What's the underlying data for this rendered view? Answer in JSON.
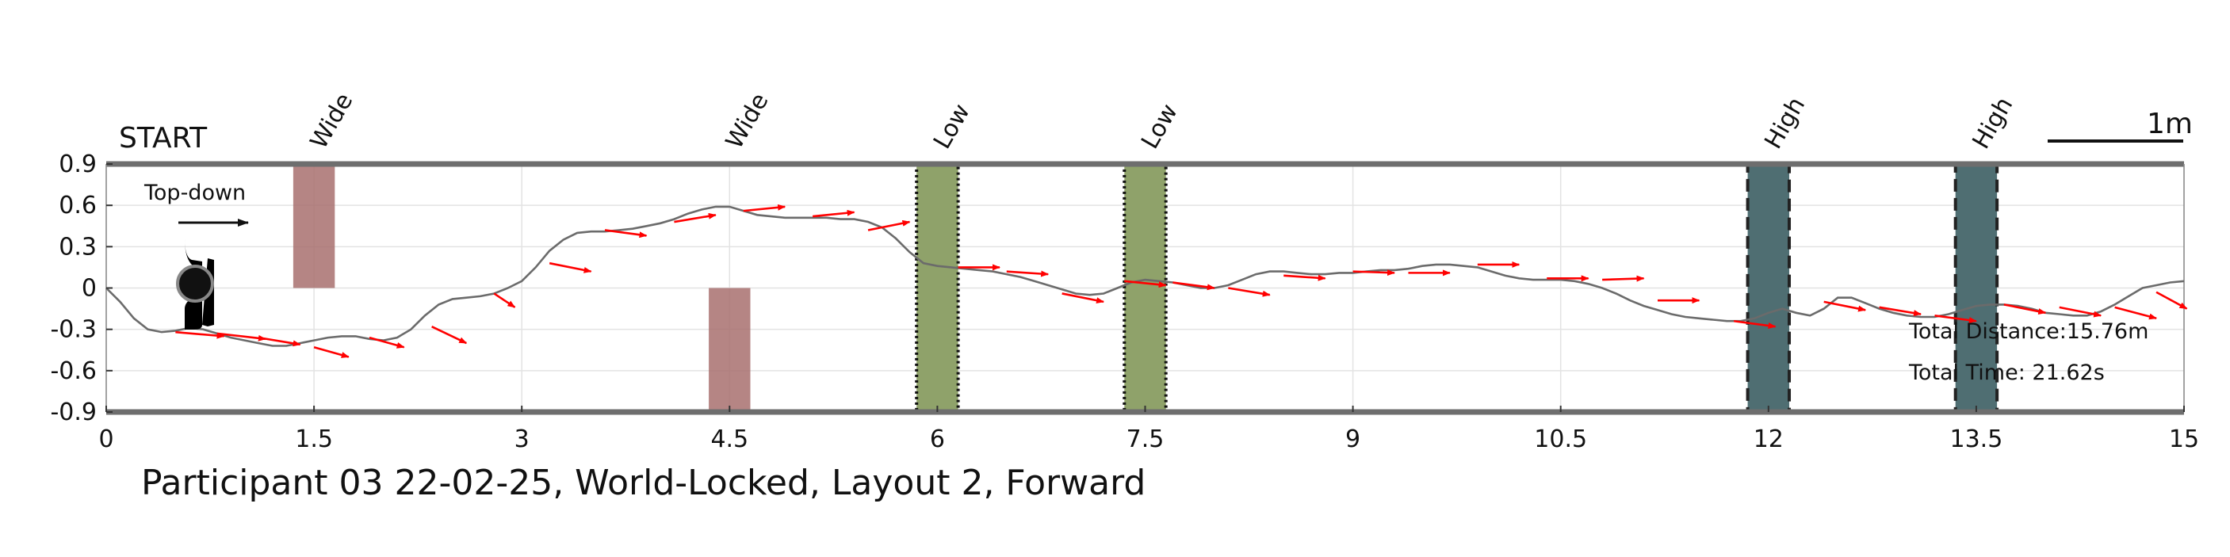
{
  "chart_data": {
    "type": "line",
    "title": "Participant 03 22-02-25, World-Locked, Layout 2, Forward",
    "start_label": "START",
    "orientation_label": "Top-down",
    "scale_label": "1m",
    "xlim": [
      0,
      15
    ],
    "ylim": [
      -0.9,
      0.9
    ],
    "x_ticks": [
      "0",
      "1.5",
      "3",
      "4.5",
      "6",
      "7.5",
      "9",
      "10.5",
      "12",
      "13.5",
      "15"
    ],
    "y_ticks": [
      "0.9",
      "0.6",
      "0.3",
      "0",
      "-0.3",
      "-0.6",
      "-0.9"
    ],
    "grid": true,
    "annotations": {
      "distance": "Total Distance:15.76m",
      "time": "Total Time: 21.62s"
    },
    "obstacles": [
      {
        "label": "Wide",
        "x0": 1.35,
        "x1": 1.65,
        "y0": 0.0,
        "y1": 0.9,
        "color": "#a8706f",
        "style": "solid"
      },
      {
        "label": "Wide",
        "x0": 4.35,
        "x1": 4.65,
        "y0": -0.9,
        "y1": 0.0,
        "color": "#a8706f",
        "style": "solid"
      },
      {
        "label": "Low",
        "x0": 5.85,
        "x1": 6.15,
        "y0": -0.9,
        "y1": 0.9,
        "color": "#8fa26a",
        "style": "dotted"
      },
      {
        "label": "Low",
        "x0": 7.35,
        "x1": 7.65,
        "y0": -0.9,
        "y1": 0.9,
        "color": "#8fa26a",
        "style": "dotted"
      },
      {
        "label": "High",
        "x0": 11.85,
        "x1": 12.15,
        "y0": -0.9,
        "y1": 0.9,
        "color": "#4f6e72",
        "style": "dashed"
      },
      {
        "label": "High",
        "x0": 13.35,
        "x1": 13.65,
        "y0": -0.9,
        "y1": 0.9,
        "color": "#4f6e72",
        "style": "dashed"
      }
    ],
    "path": {
      "x": [
        0.0,
        0.1,
        0.2,
        0.3,
        0.4,
        0.5,
        0.6,
        0.7,
        0.8,
        0.9,
        1.0,
        1.1,
        1.2,
        1.3,
        1.4,
        1.5,
        1.6,
        1.7,
        1.8,
        1.9,
        2.0,
        2.1,
        2.2,
        2.3,
        2.4,
        2.5,
        2.6,
        2.7,
        2.8,
        2.9,
        3.0,
        3.1,
        3.2,
        3.3,
        3.4,
        3.5,
        3.6,
        3.7,
        3.8,
        3.9,
        4.0,
        4.1,
        4.2,
        4.3,
        4.4,
        4.5,
        4.6,
        4.7,
        4.8,
        4.9,
        5.0,
        5.1,
        5.2,
        5.3,
        5.4,
        5.5,
        5.6,
        5.7,
        5.8,
        5.9,
        6.0,
        6.1,
        6.2,
        6.3,
        6.4,
        6.5,
        6.6,
        6.7,
        6.8,
        6.9,
        7.0,
        7.1,
        7.2,
        7.3,
        7.4,
        7.5,
        7.6,
        7.7,
        7.8,
        7.9,
        8.0,
        8.1,
        8.2,
        8.3,
        8.4,
        8.5,
        8.6,
        8.7,
        8.8,
        8.9,
        9.0,
        9.1,
        9.2,
        9.3,
        9.4,
        9.5,
        9.6,
        9.7,
        9.8,
        9.9,
        10.0,
        10.1,
        10.2,
        10.3,
        10.4,
        10.5,
        10.6,
        10.7,
        10.8,
        10.9,
        11.0,
        11.1,
        11.2,
        11.3,
        11.4,
        11.5,
        11.6,
        11.7,
        11.8,
        11.9,
        12.0,
        12.1,
        12.2,
        12.3,
        12.4,
        12.5,
        12.6,
        12.7,
        12.8,
        12.9,
        13.0,
        13.1,
        13.2,
        13.3,
        13.4,
        13.5,
        13.6,
        13.7,
        13.8,
        13.9,
        14.0,
        14.1,
        14.2,
        14.3,
        14.4,
        14.5,
        14.6,
        14.7,
        14.8,
        14.9,
        15.0
      ],
      "y": [
        0.0,
        -0.1,
        -0.22,
        -0.3,
        -0.32,
        -0.31,
        -0.29,
        -0.3,
        -0.33,
        -0.36,
        -0.38,
        -0.4,
        -0.42,
        -0.42,
        -0.4,
        -0.38,
        -0.36,
        -0.35,
        -0.35,
        -0.37,
        -0.38,
        -0.36,
        -0.3,
        -0.2,
        -0.12,
        -0.08,
        -0.07,
        -0.06,
        -0.04,
        0.0,
        0.05,
        0.15,
        0.27,
        0.35,
        0.4,
        0.41,
        0.41,
        0.42,
        0.43,
        0.45,
        0.47,
        0.5,
        0.54,
        0.57,
        0.59,
        0.59,
        0.56,
        0.53,
        0.52,
        0.51,
        0.51,
        0.51,
        0.51,
        0.5,
        0.5,
        0.48,
        0.44,
        0.36,
        0.26,
        0.18,
        0.16,
        0.15,
        0.14,
        0.13,
        0.12,
        0.1,
        0.08,
        0.05,
        0.02,
        -0.01,
        -0.04,
        -0.05,
        -0.04,
        0.0,
        0.04,
        0.06,
        0.05,
        0.04,
        0.02,
        0.0,
        0.0,
        0.02,
        0.06,
        0.1,
        0.12,
        0.12,
        0.11,
        0.1,
        0.1,
        0.11,
        0.11,
        0.12,
        0.13,
        0.13,
        0.14,
        0.16,
        0.17,
        0.17,
        0.16,
        0.15,
        0.12,
        0.09,
        0.07,
        0.06,
        0.06,
        0.06,
        0.05,
        0.03,
        0.0,
        -0.04,
        -0.09,
        -0.13,
        -0.16,
        -0.19,
        -0.21,
        -0.22,
        -0.23,
        -0.24,
        -0.24,
        -0.22,
        -0.18,
        -0.15,
        -0.18,
        -0.2,
        -0.15,
        -0.07,
        -0.07,
        -0.11,
        -0.15,
        -0.18,
        -0.2,
        -0.21,
        -0.21,
        -0.19,
        -0.16,
        -0.13,
        -0.12,
        -0.12,
        -0.13,
        -0.15,
        -0.18,
        -0.19,
        -0.2,
        -0.2,
        -0.17,
        -0.12,
        -0.06,
        0.0,
        0.02,
        0.04,
        0.05
      ]
    },
    "heading_arrows": [
      {
        "x": 0.5,
        "y": -0.32,
        "dx": 0.35,
        "dy": -0.03
      },
      {
        "x": 0.8,
        "y": -0.33,
        "dx": 0.35,
        "dy": -0.04
      },
      {
        "x": 1.1,
        "y": -0.36,
        "dx": 0.3,
        "dy": -0.05
      },
      {
        "x": 1.5,
        "y": -0.43,
        "dx": 0.25,
        "dy": -0.07
      },
      {
        "x": 1.9,
        "y": -0.36,
        "dx": 0.25,
        "dy": -0.07
      },
      {
        "x": 2.35,
        "y": -0.28,
        "dx": 0.25,
        "dy": -0.12
      },
      {
        "x": 2.8,
        "y": -0.04,
        "dx": 0.15,
        "dy": -0.1
      },
      {
        "x": 3.2,
        "y": 0.18,
        "dx": 0.3,
        "dy": -0.06
      },
      {
        "x": 3.6,
        "y": 0.42,
        "dx": 0.3,
        "dy": -0.04
      },
      {
        "x": 4.1,
        "y": 0.48,
        "dx": 0.3,
        "dy": 0.05
      },
      {
        "x": 4.6,
        "y": 0.56,
        "dx": 0.3,
        "dy": 0.03
      },
      {
        "x": 5.1,
        "y": 0.52,
        "dx": 0.3,
        "dy": 0.03
      },
      {
        "x": 5.5,
        "y": 0.42,
        "dx": 0.3,
        "dy": 0.06
      },
      {
        "x": 6.15,
        "y": 0.15,
        "dx": 0.3,
        "dy": 0.0
      },
      {
        "x": 6.5,
        "y": 0.12,
        "dx": 0.3,
        "dy": -0.02
      },
      {
        "x": 6.9,
        "y": -0.04,
        "dx": 0.3,
        "dy": -0.06
      },
      {
        "x": 7.35,
        "y": 0.05,
        "dx": 0.3,
        "dy": -0.03
      },
      {
        "x": 7.7,
        "y": 0.04,
        "dx": 0.3,
        "dy": -0.04
      },
      {
        "x": 8.1,
        "y": 0.0,
        "dx": 0.3,
        "dy": -0.05
      },
      {
        "x": 8.5,
        "y": 0.09,
        "dx": 0.3,
        "dy": -0.02
      },
      {
        "x": 9.0,
        "y": 0.12,
        "dx": 0.3,
        "dy": -0.01
      },
      {
        "x": 9.4,
        "y": 0.11,
        "dx": 0.3,
        "dy": 0.0
      },
      {
        "x": 9.9,
        "y": 0.17,
        "dx": 0.3,
        "dy": 0.0
      },
      {
        "x": 10.4,
        "y": 0.07,
        "dx": 0.3,
        "dy": 0.0
      },
      {
        "x": 10.8,
        "y": 0.06,
        "dx": 0.3,
        "dy": 0.01
      },
      {
        "x": 11.2,
        "y": -0.09,
        "dx": 0.3,
        "dy": 0.0
      },
      {
        "x": 11.75,
        "y": -0.24,
        "dx": 0.3,
        "dy": -0.04
      },
      {
        "x": 12.4,
        "y": -0.1,
        "dx": 0.3,
        "dy": -0.06
      },
      {
        "x": 12.8,
        "y": -0.14,
        "dx": 0.3,
        "dy": -0.05
      },
      {
        "x": 13.2,
        "y": -0.2,
        "dx": 0.3,
        "dy": -0.04
      },
      {
        "x": 13.7,
        "y": -0.12,
        "dx": 0.3,
        "dy": -0.06
      },
      {
        "x": 14.1,
        "y": -0.14,
        "dx": 0.3,
        "dy": -0.06
      },
      {
        "x": 14.5,
        "y": -0.14,
        "dx": 0.3,
        "dy": -0.08
      },
      {
        "x": 14.8,
        "y": -0.03,
        "dx": 0.22,
        "dy": -0.12
      }
    ],
    "colors": {
      "path": "#6b6b6b",
      "arrow": "#ff0000",
      "boundary": "#6e6e6e",
      "grid": "#e3e3e3"
    }
  }
}
